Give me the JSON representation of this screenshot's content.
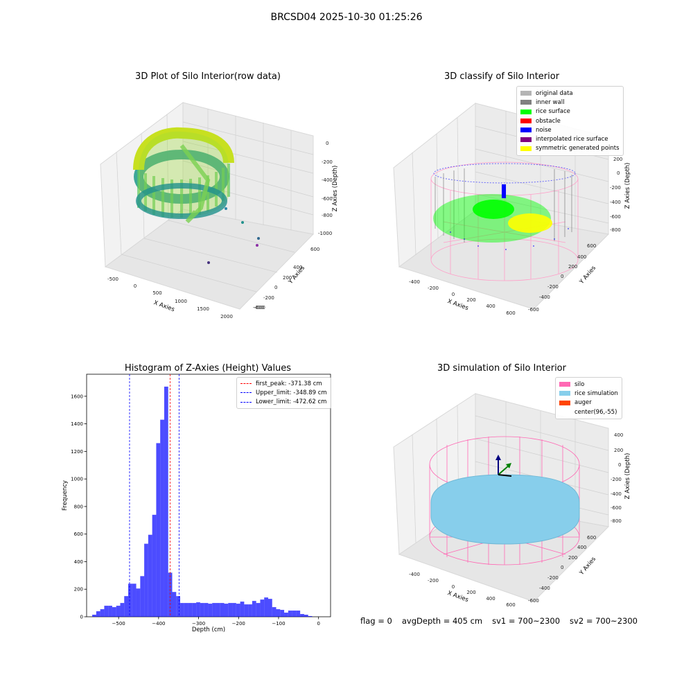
{
  "figure": {
    "suptitle": "BRCSD04 2025-10-30 01:25:26",
    "footer": {
      "flag": "flag = 0",
      "avg_depth": "avgDepth = 405 cm",
      "sv1": "sv1 = 700~2300",
      "sv2": "sv2 = 700~2300"
    }
  },
  "panels": {
    "raw": {
      "title": "3D Plot of Silo Interior(row data)",
      "x_label": "X Axies",
      "y_label": "Y Axies",
      "z_label": "Z Axies (Depth)",
      "x_ticks": [
        "-500",
        "0",
        "500",
        "1000",
        "1500",
        "2000"
      ],
      "y_ticks": [
        "600",
        "400",
        "200",
        "0",
        "-200",
        "-400",
        "-600"
      ],
      "z_ticks": [
        "0",
        "-200",
        "-400",
        "-600",
        "-800",
        "-1000"
      ]
    },
    "classify": {
      "title": "3D classify of Silo Interior",
      "x_label": "X Axies",
      "y_label": "Y Axies",
      "z_label": "Z Axies (Depth)",
      "x_ticks": [
        "-400",
        "-200",
        "0",
        "200",
        "400",
        "600"
      ],
      "y_ticks": [
        "600",
        "400",
        "200",
        "0",
        "-200",
        "-400",
        "-600"
      ],
      "z_ticks": [
        "400",
        "200",
        "0",
        "-200",
        "-400",
        "-600",
        "-800"
      ],
      "legend": [
        {
          "label": "original data",
          "color": "#b4b4b4"
        },
        {
          "label": "inner wall",
          "color": "#808080"
        },
        {
          "label": "rice surface",
          "color": "#00ff00"
        },
        {
          "label": "obstacle",
          "color": "#ff0000"
        },
        {
          "label": "noise",
          "color": "#0000ff"
        },
        {
          "label": "interpolated rice surface",
          "color": "#800080"
        },
        {
          "label": "symmetric generated points",
          "color": "#ffff00"
        }
      ]
    },
    "simulation": {
      "title": "3D simulation of Silo Interior",
      "x_label": "X Axies",
      "y_label": "Y Axies",
      "z_label": "Z Axies (Depth)",
      "x_ticks": [
        "-400",
        "-200",
        "0",
        "200",
        "400",
        "600"
      ],
      "y_ticks": [
        "600",
        "400",
        "200",
        "0",
        "-200",
        "-400",
        "-600"
      ],
      "z_ticks": [
        "400",
        "200",
        "0",
        "-200",
        "-400",
        "-600",
        "-800"
      ],
      "legend": [
        {
          "label": "silo",
          "color": "#ff69b4"
        },
        {
          "label": "rice simulation",
          "color": "#87ceeb"
        },
        {
          "label": "auger",
          "color": "#ff4500"
        },
        {
          "label": "center(96,-55)",
          "color": "#ffffff"
        }
      ]
    }
  },
  "chart_data": {
    "type": "bar",
    "title": "Histogram of Z-Axies (Height) Values",
    "xlabel": "Depth (cm)",
    "ylabel": "Frequency",
    "xlim": [
      -580,
      30
    ],
    "ylim": [
      0,
      1760
    ],
    "x_ticks": [
      -500,
      -400,
      -300,
      -200,
      -100,
      0
    ],
    "y_ticks": [
      0,
      200,
      400,
      600,
      800,
      1000,
      1200,
      1400,
      1600
    ],
    "bar_color": "#0000ff",
    "bins": [
      {
        "x0": -566,
        "x1": -556,
        "count": 15
      },
      {
        "x0": -556,
        "x1": -546,
        "count": 40
      },
      {
        "x0": -546,
        "x1": -536,
        "count": 55
      },
      {
        "x0": -536,
        "x1": -526,
        "count": 80
      },
      {
        "x0": -526,
        "x1": -516,
        "count": 80
      },
      {
        "x0": -516,
        "x1": -506,
        "count": 70
      },
      {
        "x0": -506,
        "x1": -496,
        "count": 80
      },
      {
        "x0": -496,
        "x1": -486,
        "count": 100
      },
      {
        "x0": -486,
        "x1": -476,
        "count": 150
      },
      {
        "x0": -476,
        "x1": -466,
        "count": 240
      },
      {
        "x0": -466,
        "x1": -456,
        "count": 240
      },
      {
        "x0": -456,
        "x1": -446,
        "count": 205
      },
      {
        "x0": -446,
        "x1": -436,
        "count": 295
      },
      {
        "x0": -436,
        "x1": -426,
        "count": 530
      },
      {
        "x0": -426,
        "x1": -416,
        "count": 595
      },
      {
        "x0": -416,
        "x1": -406,
        "count": 740
      },
      {
        "x0": -406,
        "x1": -396,
        "count": 1260
      },
      {
        "x0": -396,
        "x1": -386,
        "count": 1430
      },
      {
        "x0": -386,
        "x1": -376,
        "count": 1670
      },
      {
        "x0": -376,
        "x1": -366,
        "count": 320
      },
      {
        "x0": -366,
        "x1": -356,
        "count": 180
      },
      {
        "x0": -356,
        "x1": -346,
        "count": 150
      },
      {
        "x0": -346,
        "x1": -336,
        "count": 100
      },
      {
        "x0": -336,
        "x1": -326,
        "count": 100
      },
      {
        "x0": -326,
        "x1": -316,
        "count": 100
      },
      {
        "x0": -316,
        "x1": -306,
        "count": 100
      },
      {
        "x0": -306,
        "x1": -296,
        "count": 105
      },
      {
        "x0": -296,
        "x1": -286,
        "count": 100
      },
      {
        "x0": -286,
        "x1": -276,
        "count": 100
      },
      {
        "x0": -276,
        "x1": -266,
        "count": 95
      },
      {
        "x0": -266,
        "x1": -256,
        "count": 100
      },
      {
        "x0": -256,
        "x1": -246,
        "count": 100
      },
      {
        "x0": -246,
        "x1": -236,
        "count": 100
      },
      {
        "x0": -236,
        "x1": -226,
        "count": 95
      },
      {
        "x0": -226,
        "x1": -216,
        "count": 100
      },
      {
        "x0": -216,
        "x1": -206,
        "count": 100
      },
      {
        "x0": -206,
        "x1": -196,
        "count": 95
      },
      {
        "x0": -196,
        "x1": -186,
        "count": 110
      },
      {
        "x0": -186,
        "x1": -176,
        "count": 90
      },
      {
        "x0": -176,
        "x1": -166,
        "count": 90
      },
      {
        "x0": -166,
        "x1": -156,
        "count": 115
      },
      {
        "x0": -156,
        "x1": -146,
        "count": 100
      },
      {
        "x0": -146,
        "x1": -136,
        "count": 125
      },
      {
        "x0": -136,
        "x1": -126,
        "count": 140
      },
      {
        "x0": -126,
        "x1": -116,
        "count": 130
      },
      {
        "x0": -116,
        "x1": -106,
        "count": 70
      },
      {
        "x0": -106,
        "x1": -96,
        "count": 55
      },
      {
        "x0": -96,
        "x1": -86,
        "count": 50
      },
      {
        "x0": -86,
        "x1": -76,
        "count": 30
      },
      {
        "x0": -76,
        "x1": -66,
        "count": 45
      },
      {
        "x0": -66,
        "x1": -56,
        "count": 45
      },
      {
        "x0": -56,
        "x1": -46,
        "count": 45
      },
      {
        "x0": -46,
        "x1": -36,
        "count": 20
      },
      {
        "x0": -36,
        "x1": -26,
        "count": 15
      },
      {
        "x0": -26,
        "x1": -16,
        "count": 5
      }
    ],
    "lines": [
      {
        "label": "first_peak: -371.38 cm",
        "x": -371.38,
        "color": "#ff0000"
      },
      {
        "label": "Upper_limit: -348.89 cm",
        "x": -348.89,
        "color": "#0000ff"
      },
      {
        "label": "Lower_limit: -472.62 cm",
        "x": -472.62,
        "color": "#0000ff"
      }
    ],
    "legend_position": "top-right"
  }
}
